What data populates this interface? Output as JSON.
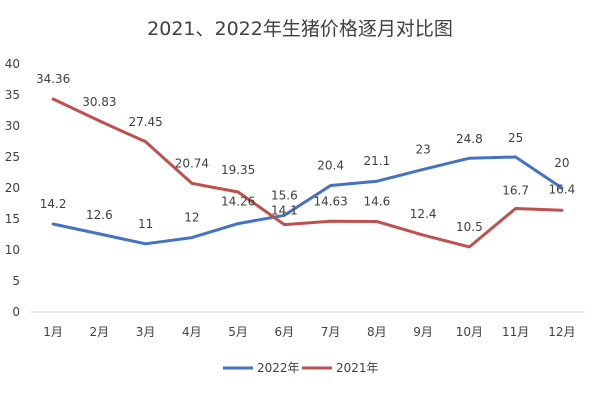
{
  "chart_data": {
    "type": "line",
    "title": "2021、2022年生猪价格逐月对比图",
    "xlabel": "",
    "ylabel": "",
    "categories": [
      "1月",
      "2月",
      "3月",
      "4月",
      "5月",
      "6月",
      "7月",
      "8月",
      "9月",
      "10月",
      "11月",
      "12月"
    ],
    "ylim": [
      0,
      40
    ],
    "yticks": [
      0,
      5,
      10,
      15,
      20,
      25,
      30,
      35,
      40
    ],
    "grid": false,
    "legend_position": "bottom",
    "series": [
      {
        "name": "2022年",
        "color": "#4472C4",
        "values": [
          14.2,
          12.6,
          11,
          12,
          14.26,
          15.6,
          20.4,
          21.1,
          23,
          24.8,
          25,
          20
        ],
        "labels": [
          "14.2",
          "12.6",
          "11",
          "12",
          "14.26",
          "15.6",
          "20.4",
          "21.1",
          "23",
          "24.8",
          "25",
          "20"
        ]
      },
      {
        "name": "2021年",
        "color": "#C0504D",
        "values": [
          34.36,
          30.83,
          27.45,
          20.74,
          19.35,
          14.1,
          14.63,
          14.6,
          12.4,
          10.5,
          16.7,
          16.4
        ],
        "labels": [
          "34.36",
          "30.83",
          "27.45",
          "20.74",
          "19.35",
          "14.1",
          "14.63",
          "14.6",
          "12.4",
          "10.5",
          "16.7",
          "16.4"
        ]
      }
    ]
  }
}
